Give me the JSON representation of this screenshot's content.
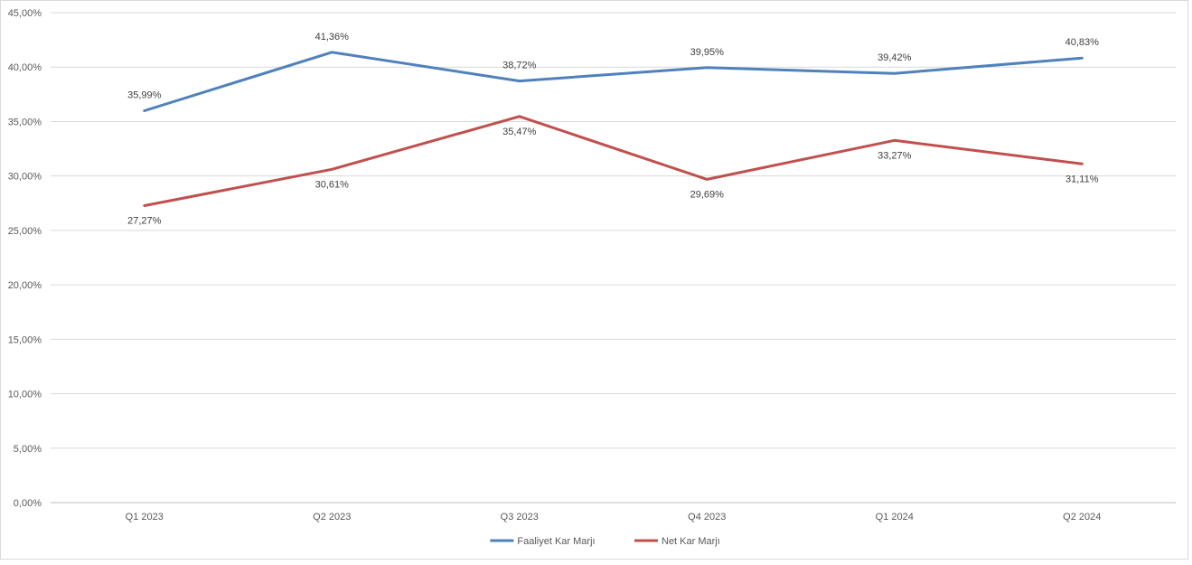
{
  "chart_data": {
    "type": "line",
    "categories": [
      "Q1 2023",
      "Q2 2023",
      "Q3 2023",
      "Q4 2023",
      "Q1 2024",
      "Q2 2024"
    ],
    "y_ticks": [
      "0,00%",
      "5,00%",
      "10,00%",
      "15,00%",
      "20,00%",
      "25,00%",
      "30,00%",
      "35,00%",
      "40,00%",
      "45,00%"
    ],
    "ylim": [
      0,
      45
    ],
    "grid": true,
    "legend_position": "bottom",
    "series": [
      {
        "name": "Faaliyet Kar Marjı",
        "color": "#4f81bd",
        "values": [
          35.99,
          41.36,
          38.72,
          39.95,
          39.42,
          40.83
        ],
        "labels": [
          "35,99%",
          "41,36%",
          "38,72%",
          "39,95%",
          "39,42%",
          "40,83%"
        ],
        "label_side": "above"
      },
      {
        "name": "Net Kar Marjı",
        "color": "#c0504d",
        "values": [
          27.27,
          30.61,
          35.47,
          29.69,
          33.27,
          31.11
        ],
        "labels": [
          "27,27%",
          "30,61%",
          "35,47%",
          "29,69%",
          "33,27%",
          "31,11%"
        ],
        "label_side": "below"
      }
    ]
  }
}
